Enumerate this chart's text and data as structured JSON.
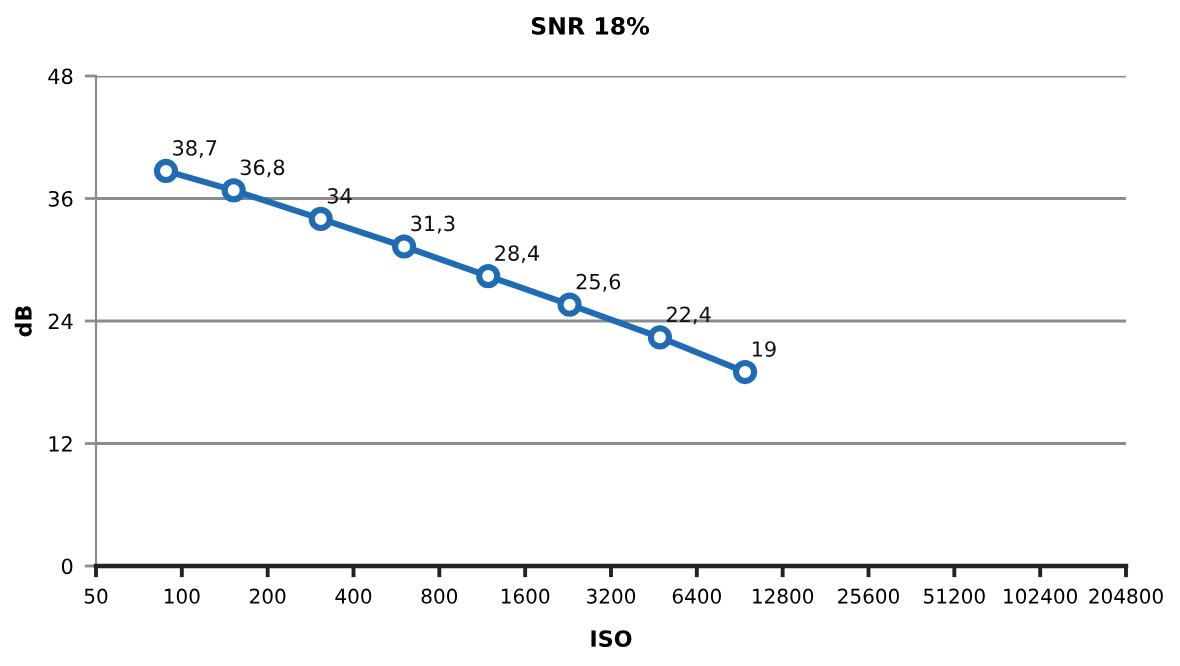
{
  "chart_data": {
    "type": "line",
    "title": "SNR 18%",
    "xlabel": "ISO",
    "ylabel": "dB",
    "x": [
      88,
      152,
      307,
      602,
      1187,
      2290,
      4750,
      9450
    ],
    "series": [
      {
        "color": "#1f6cb4",
        "values": [
          38.7,
          36.8,
          34,
          31.3,
          28.4,
          25.6,
          22.4,
          19
        ],
        "value_labels": [
          "38,7",
          "36,8",
          "34",
          "31,3",
          "28,4",
          "25,6",
          "22,4",
          "19"
        ]
      }
    ],
    "log": "x",
    "xlim": [
      50,
      204800
    ],
    "xticks": [
      50,
      100,
      200,
      400,
      800,
      1600,
      3200,
      6400,
      12800,
      25600,
      51200,
      102400,
      204800
    ],
    "ylim": [
      0,
      48
    ],
    "yticks": [
      0,
      12,
      24,
      36,
      48
    ],
    "grid": "y",
    "marker": "circle",
    "line_style": "solid"
  }
}
